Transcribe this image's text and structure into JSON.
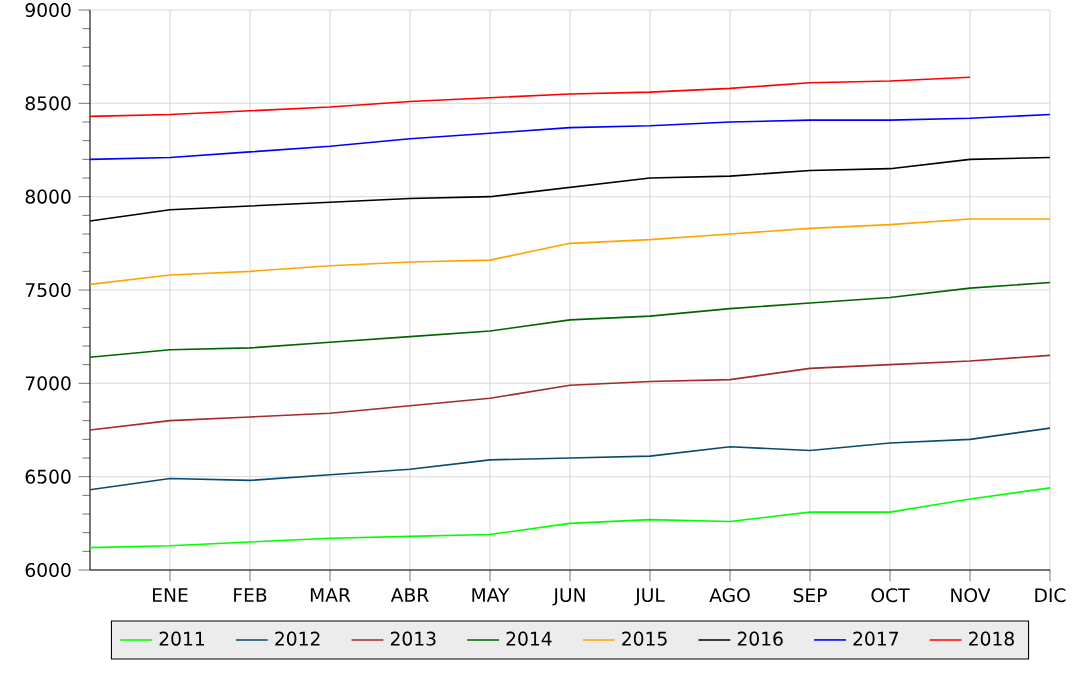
{
  "chart_data": {
    "type": "line",
    "categories": [
      null,
      "ENE",
      "FEB",
      "MAR",
      "ABR",
      "MAY",
      "JUN",
      "JUL",
      "AGO",
      "SEP",
      "OCT",
      "NOV",
      "DIC"
    ],
    "ylim": [
      6000,
      9000
    ],
    "yticks": [
      6000,
      6500,
      7000,
      7500,
      8000,
      8500,
      9000
    ],
    "grid": true,
    "legend": "bottom",
    "marker": "none",
    "line_style": "solid",
    "series": [
      {
        "name": "2011",
        "color": "#00ff00",
        "values": [
          6120,
          6130,
          6150,
          6170,
          6180,
          6190,
          6250,
          6270,
          6260,
          6310,
          6310,
          6380,
          6440
        ]
      },
      {
        "name": "2012",
        "color": "#0b4a6e",
        "values": [
          6430,
          6490,
          6480,
          6510,
          6540,
          6590,
          6600,
          6610,
          6660,
          6640,
          6680,
          6700,
          6760
        ]
      },
      {
        "name": "2013",
        "color": "#a52a2a",
        "values": [
          6750,
          6800,
          6820,
          6840,
          6880,
          6920,
          6990,
          7010,
          7020,
          7080,
          7100,
          7120,
          7150
        ]
      },
      {
        "name": "2014",
        "color": "#006400",
        "values": [
          7140,
          7180,
          7190,
          7220,
          7250,
          7280,
          7340,
          7360,
          7400,
          7430,
          7460,
          7510,
          7540
        ]
      },
      {
        "name": "2015",
        "color": "#ffa500",
        "values": [
          7530,
          7580,
          7600,
          7630,
          7650,
          7660,
          7750,
          7770,
          7800,
          7830,
          7850,
          7880,
          7880
        ]
      },
      {
        "name": "2016",
        "color": "#000000",
        "values": [
          7870,
          7930,
          7950,
          7970,
          7990,
          8000,
          8050,
          8100,
          8110,
          8140,
          8150,
          8200,
          8210
        ]
      },
      {
        "name": "2017",
        "color": "#0000ff",
        "values": [
          8200,
          8210,
          8240,
          8270,
          8310,
          8340,
          8370,
          8380,
          8400,
          8410,
          8410,
          8420,
          8440
        ]
      },
      {
        "name": "2018",
        "color": "#ff0000",
        "values": [
          8430,
          8440,
          8460,
          8480,
          8510,
          8530,
          8550,
          8560,
          8580,
          8610,
          8620,
          8640,
          null
        ]
      }
    ]
  }
}
